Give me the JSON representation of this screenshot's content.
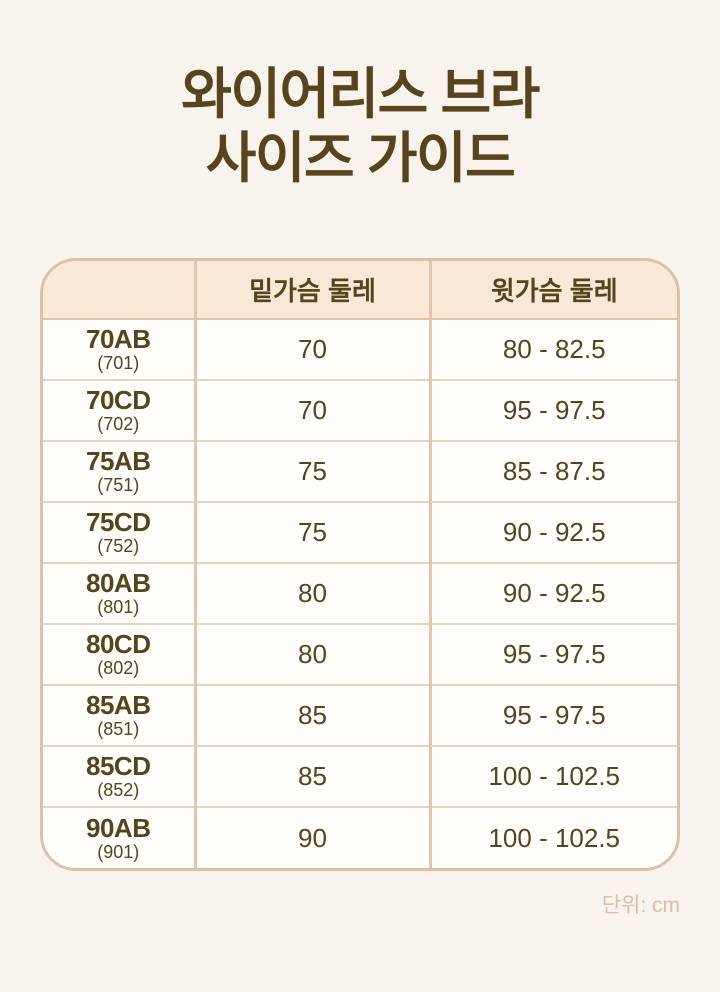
{
  "page": {
    "title_line1": "와이어리스 브라",
    "title_line2": "사이즈 가이드",
    "unit_note": "단위: cm",
    "colors": {
      "background": "#f8f3ec",
      "text_brown": "#57441d",
      "table_border": "#dcc0a8",
      "inner_border": "#e3c6aa",
      "header_bg": "#f9e8d8",
      "row_bg": "#fffefa",
      "note_text": "#d9bfa7"
    }
  },
  "table": {
    "columns": [
      "",
      "밑가슴 둘레",
      "윗가슴 둘레"
    ],
    "rows": [
      {
        "size": "70AB",
        "code": "(701)",
        "underbust": "70",
        "bust": "80 - 82.5"
      },
      {
        "size": "70CD",
        "code": "(702)",
        "underbust": "70",
        "bust": "95 - 97.5"
      },
      {
        "size": "75AB",
        "code": "(751)",
        "underbust": "75",
        "bust": "85 - 87.5"
      },
      {
        "size": "75CD",
        "code": "(752)",
        "underbust": "75",
        "bust": "90 - 92.5"
      },
      {
        "size": "80AB",
        "code": "(801)",
        "underbust": "80",
        "bust": "90 - 92.5"
      },
      {
        "size": "80CD",
        "code": "(802)",
        "underbust": "80",
        "bust": "95 - 97.5"
      },
      {
        "size": "85AB",
        "code": "(851)",
        "underbust": "85",
        "bust": "95 - 97.5"
      },
      {
        "size": "85CD",
        "code": "(852)",
        "underbust": "85",
        "bust": "100 - 102.5"
      },
      {
        "size": "90AB",
        "code": "(901)",
        "underbust": "90",
        "bust": "100 - 102.5"
      }
    ]
  }
}
